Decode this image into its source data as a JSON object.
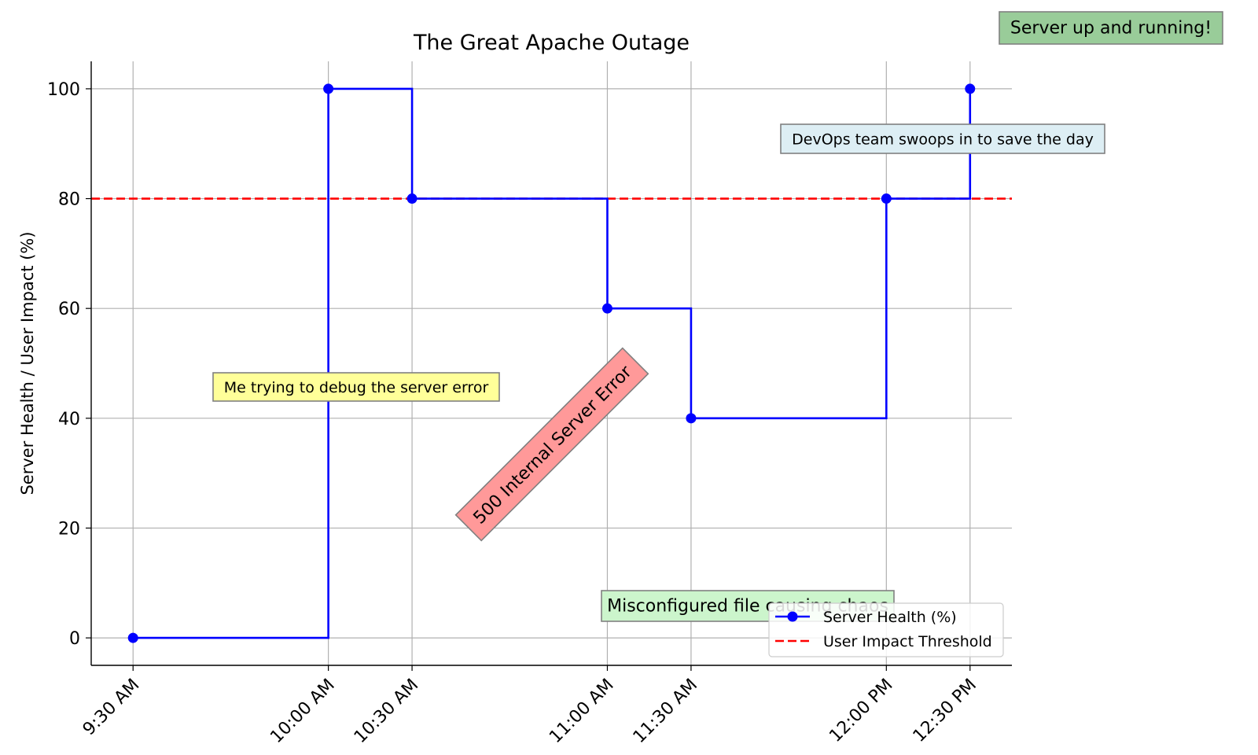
{
  "chart_data": {
    "type": "line",
    "title": "The Great Apache Outage",
    "xlabel": "",
    "ylabel": "Server Health / User Impact (%)",
    "x": [
      "9:30 AM",
      "10:00 AM",
      "10:30 AM",
      "11:00 AM",
      "11:30 AM",
      "12:00 PM",
      "12:30 PM"
    ],
    "x_minutes": [
      0,
      70,
      100,
      170,
      200,
      270,
      300
    ],
    "xlim": [
      -15,
      315
    ],
    "ylim": [
      -5,
      105
    ],
    "yticks": [
      0,
      20,
      40,
      60,
      80,
      100
    ],
    "grid": true,
    "legend_position": "lower-right",
    "series": [
      {
        "name": "Server Health (%)",
        "style": "step-post",
        "color": "#0000ff",
        "marker": "circle",
        "values": [
          0,
          100,
          80,
          60,
          40,
          80,
          100
        ]
      },
      {
        "name": "User Impact Threshold",
        "style": "dashed-hline",
        "color": "#ff0000",
        "value": 80
      }
    ],
    "annotations": [
      {
        "text": "Server up and running!",
        "bg": "#99cc99"
      },
      {
        "text": "DevOps team swoops in to save the day",
        "bg": "#ddeef4"
      },
      {
        "text": "Me trying to debug the server error",
        "bg": "#ffff99"
      },
      {
        "text": "500 Internal Server Error",
        "bg": "#ff9999"
      },
      {
        "text": "Misconfigured file causing chaos",
        "bg": "#ccf5cc"
      }
    ]
  }
}
